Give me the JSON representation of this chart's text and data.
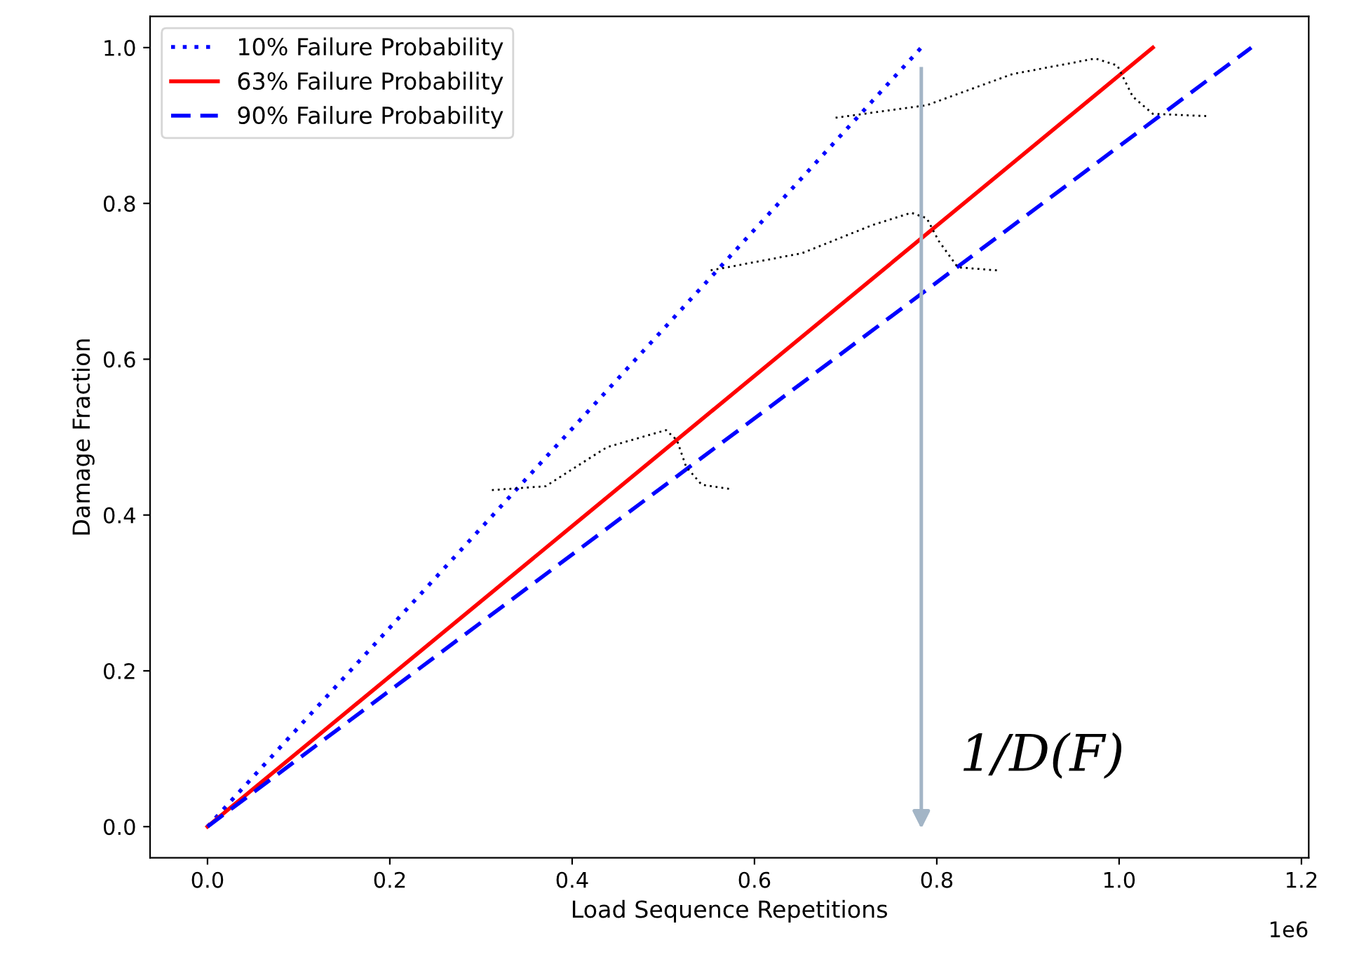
{
  "chart_data": {
    "type": "line",
    "xlabel": "Load Sequence Repetitions",
    "ylabel": "Damage Fraction",
    "series": [
      {
        "name": "10% Failure Probability",
        "color": "#0000ff",
        "line_style": "dotted",
        "x": [
          0,
          0.783
        ],
        "values": [
          0,
          1.0
        ]
      },
      {
        "name": "63% Failure Probability",
        "color": "#ff0000",
        "line_style": "solid",
        "x": [
          0,
          1.037
        ],
        "values": [
          0,
          1.0
        ]
      },
      {
        "name": "90% Failure Probability",
        "color": "#0000ff",
        "line_style": "dashed",
        "x": [
          0,
          1.145
        ],
        "values": [
          0,
          1.0
        ]
      },
      {
        "color": "#000000",
        "line_style": "dotted",
        "x": [
          0.312,
          0.371,
          0.438,
          0.503,
          0.515,
          0.525,
          0.542,
          0.575
        ],
        "values": [
          0.432,
          0.437,
          0.487,
          0.509,
          0.496,
          0.462,
          0.439,
          0.433
        ]
      },
      {
        "color": "#000000",
        "line_style": "dotted",
        "x": [
          0.552,
          0.652,
          0.729,
          0.772,
          0.789,
          0.802,
          0.823,
          0.866
        ],
        "values": [
          0.714,
          0.736,
          0.772,
          0.788,
          0.781,
          0.752,
          0.718,
          0.714
        ]
      },
      {
        "color": "#000000",
        "line_style": "dotted",
        "x": [
          0.689,
          0.789,
          0.883,
          0.974,
          0.998,
          1.015,
          1.037,
          1.097
        ],
        "values": [
          0.91,
          0.926,
          0.966,
          0.986,
          0.977,
          0.937,
          0.915,
          0.912
        ]
      }
    ],
    "xlim": [
      -0.063,
      1.208
    ],
    "ylim": [
      -0.04,
      1.04
    ],
    "xticks": [
      {
        "value": 0,
        "label": "0.0"
      },
      0.2,
      0.4,
      0.6,
      0.8,
      {
        "value": 1.0,
        "label": "1.0"
      },
      1.2
    ],
    "yticks": [
      {
        "value": 0,
        "label": "0.0"
      },
      {
        "value": 0.2,
        "label": "0.2"
      },
      {
        "value": 0.4,
        "label": "0.4"
      },
      {
        "value": 0.6,
        "label": "0.6"
      },
      {
        "value": 0.8,
        "label": "0.8"
      },
      {
        "value": 1.0,
        "label": "1.0"
      }
    ],
    "ref_lines": [
      {
        "axis": "x",
        "value": 0.783,
        "label": "1/D(F)",
        "color": "#a3b5c6"
      }
    ],
    "annotations": [
      "1e6"
    ],
    "legend": "top left",
    "grid": false
  }
}
